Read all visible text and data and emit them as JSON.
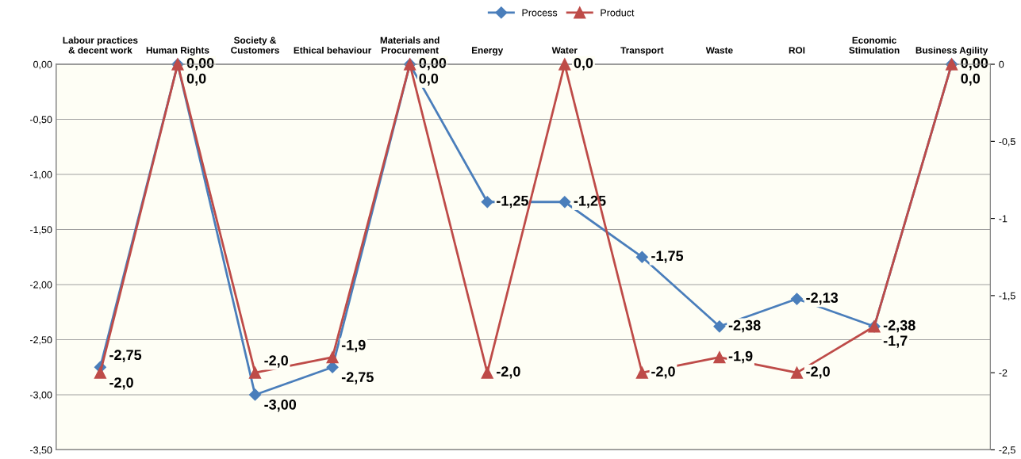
{
  "chart_data": {
    "type": "line",
    "categories": [
      "Labour practices\n& decent work",
      "Human Rights",
      "Society &\nCustomers",
      "Ethical behaviour",
      "Materials and\nProcurement",
      "Energy",
      "Water",
      "Transport",
      "Waste",
      "ROI",
      "Economic\nStimulation",
      "Business Agility"
    ],
    "series": [
      {
        "name": "Process",
        "color": "#4a7ebb",
        "marker": "diamond",
        "values": [
          -2.75,
          0,
          -3.0,
          -2.75,
          0,
          -1.25,
          -1.25,
          -1.75,
          -2.38,
          -2.13,
          -2.38,
          0
        ],
        "value_labels": [
          "-2,75",
          "0,00",
          "-3,00",
          "-2,75",
          "0,00",
          "-1,25",
          "-1,25",
          "-1,75",
          "-2,38",
          "-2,13",
          "-2,38",
          "0,00"
        ]
      },
      {
        "name": "Product",
        "color": "#be4b48",
        "marker": "triangle",
        "axis": "y2",
        "values": [
          -2.0,
          0,
          -2.0,
          -1.9,
          0,
          -2.0,
          0,
          -2.0,
          -1.9,
          -2.0,
          -1.7,
          0
        ],
        "value_labels": [
          "-2,0",
          "0,0",
          "-2,0",
          "-1,9",
          "0,0",
          "-2,0",
          "0,0",
          "-2,0",
          "-1,9",
          "-2,0",
          "-1,7",
          "0,0"
        ]
      }
    ],
    "ylim": [
      -3.5,
      0
    ],
    "yticks": [
      {
        "value": 0,
        "label": "0,00"
      },
      {
        "value": -0.5,
        "label": "-0,50"
      },
      {
        "value": -1,
        "label": "-1,00"
      },
      {
        "value": -1.5,
        "label": "-1,50"
      },
      {
        "value": -2,
        "label": "-2,00"
      },
      {
        "value": -2.5,
        "label": "-2,50"
      },
      {
        "value": -3,
        "label": "-3,00"
      },
      {
        "value": -3.5,
        "label": "-3,50"
      }
    ],
    "y2lim": [
      -2.5,
      0
    ],
    "y2ticks": [
      0,
      {
        "value": -0.5,
        "label": "-0,5"
      },
      -1,
      {
        "value": -1.5,
        "label": "-1,5"
      },
      -2,
      {
        "value": -2.5,
        "label": "-2,5"
      }
    ],
    "grid": "y",
    "legend": "top",
    "line_style": "solid"
  }
}
